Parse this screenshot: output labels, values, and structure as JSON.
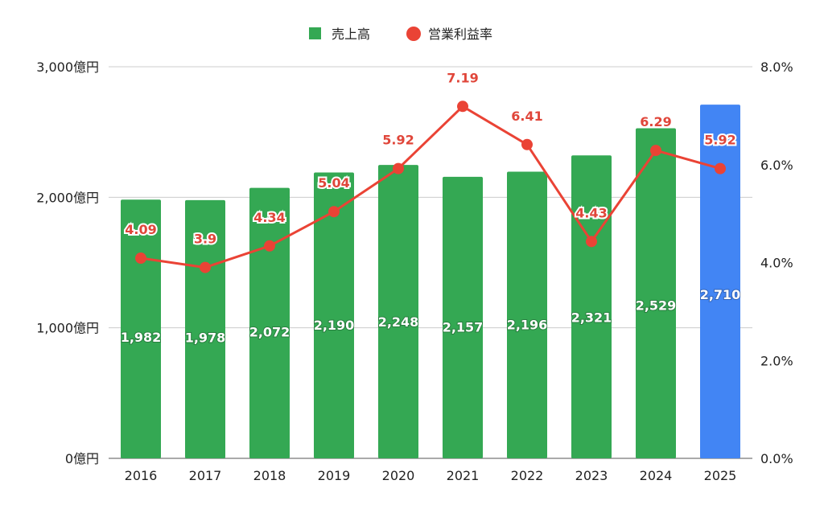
{
  "chart_data": {
    "type": "bar",
    "categories": [
      "2016",
      "2017",
      "2018",
      "2019",
      "2020",
      "2021",
      "2022",
      "2023",
      "2024",
      "2025"
    ],
    "series": [
      {
        "name": "売上高",
        "type": "bar",
        "axis": "left",
        "color": "#34a853",
        "highlight_color": "#4285f4",
        "highlight_index": 9,
        "values": [
          1982,
          1978,
          2072,
          2190,
          2248,
          2157,
          2196,
          2321,
          2529,
          2710
        ],
        "labels": [
          "1,982",
          "1,978",
          "2,072",
          "2,190",
          "2,248",
          "2,157",
          "2,196",
          "2,321",
          "2,529",
          "2,710"
        ]
      },
      {
        "name": "営業利益率",
        "type": "line",
        "axis": "right",
        "color": "#ea4335",
        "values": [
          4.09,
          3.9,
          4.34,
          5.04,
          5.92,
          7.19,
          6.41,
          4.43,
          6.29,
          5.92
        ],
        "labels": [
          "4.09",
          "3.9",
          "4.34",
          "5.04",
          "5.92",
          "7.19",
          "6.41",
          "4.43",
          "6.29",
          "5.92"
        ]
      }
    ],
    "y_left": {
      "ylim": [
        0,
        3000
      ],
      "ticks": [
        0,
        1000,
        2000,
        3000
      ],
      "tick_labels": [
        "0億円",
        "1,000億円",
        "2,000億円",
        "3,000億円"
      ]
    },
    "y_right": {
      "ylim": [
        0,
        8
      ],
      "ticks": [
        0,
        2,
        4,
        6,
        8
      ],
      "tick_labels": [
        "0.0%",
        "2.0%",
        "4.0%",
        "6.0%",
        "8.0%"
      ]
    },
    "legend": {
      "position": "top-center",
      "items": [
        "売上高",
        "営業利益率"
      ]
    },
    "grid": true,
    "title": "",
    "xlabel": "",
    "ylabel": ""
  }
}
